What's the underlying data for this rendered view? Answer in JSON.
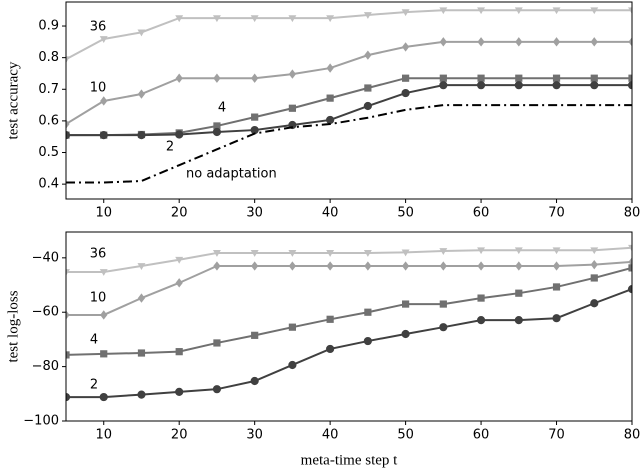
{
  "chart_data": [
    {
      "type": "line",
      "ylabel": "test accuracy",
      "x": [
        5,
        10,
        15,
        20,
        25,
        30,
        35,
        40,
        45,
        50,
        55,
        60,
        65,
        70,
        75,
        80
      ],
      "xlim": [
        5,
        80
      ],
      "xticks": [
        10,
        20,
        30,
        40,
        50,
        60,
        70,
        80
      ],
      "ylim": [
        0.353,
        0.976
      ],
      "yticks": [
        0.4,
        0.5,
        0.6,
        0.7,
        0.8,
        0.9
      ],
      "series": [
        {
          "name": "36",
          "color": "#c0c0c0",
          "marker": "triangle-down",
          "values": [
            0.795,
            0.859,
            0.88,
            0.925,
            0.925,
            0.925,
            0.925,
            0.925,
            0.935,
            0.944,
            0.95,
            0.95,
            0.95,
            0.95,
            0.95,
            0.95
          ]
        },
        {
          "name": "10",
          "color": "#a0a0a0",
          "marker": "diamond",
          "values": [
            0.59,
            0.663,
            0.685,
            0.735,
            0.735,
            0.735,
            0.748,
            0.767,
            0.808,
            0.834,
            0.85,
            0.85,
            0.85,
            0.85,
            0.85,
            0.85
          ]
        },
        {
          "name": "4",
          "color": "#707070",
          "marker": "square",
          "values": [
            0.555,
            0.555,
            0.557,
            0.562,
            0.584,
            0.612,
            0.64,
            0.672,
            0.704,
            0.735,
            0.735,
            0.735,
            0.735,
            0.735,
            0.735,
            0.735
          ]
        },
        {
          "name": "2",
          "color": "#404040",
          "marker": "circle",
          "values": [
            0.555,
            0.555,
            0.555,
            0.557,
            0.565,
            0.571,
            0.587,
            0.603,
            0.647,
            0.688,
            0.713,
            0.713,
            0.713,
            0.713,
            0.713,
            0.713
          ]
        },
        {
          "name": "no adaptation",
          "color": "#000000",
          "linestyle": "dashdot",
          "values": [
            0.405,
            0.405,
            0.41,
            0.46,
            0.51,
            0.56,
            0.58,
            0.59,
            0.61,
            0.635,
            0.65,
            0.65,
            0.65,
            0.65,
            0.65,
            0.65
          ]
        }
      ]
    },
    {
      "type": "line",
      "ylabel": "test log-loss",
      "xlabel": "meta-time step t",
      "x": [
        5,
        10,
        15,
        20,
        25,
        30,
        35,
        40,
        45,
        50,
        55,
        60,
        65,
        70,
        75,
        80
      ],
      "xlim": [
        5,
        80
      ],
      "xticks": [
        10,
        20,
        30,
        40,
        50,
        60,
        70,
        80
      ],
      "ylim": [
        -100,
        -30.5
      ],
      "yticks": [
        -100,
        -80,
        -60,
        -40
      ],
      "series": [
        {
          "name": "36",
          "color": "#c0c0c0",
          "marker": "triangle-down",
          "values": [
            -45.2,
            -45.2,
            -43,
            -40.7,
            -38.2,
            -38.2,
            -38.2,
            -38.2,
            -38.2,
            -38,
            -37.5,
            -37.2,
            -37.2,
            -37.2,
            -37.2,
            -36.3
          ]
        },
        {
          "name": "10",
          "color": "#a0a0a0",
          "marker": "diamond",
          "values": [
            -61,
            -61,
            -54.8,
            -49.2,
            -43,
            -43,
            -43,
            -43,
            -43,
            -43,
            -43,
            -43,
            -43,
            -43,
            -42.5,
            -41.5
          ]
        },
        {
          "name": "4",
          "color": "#707070",
          "marker": "square",
          "values": [
            -75.7,
            -75.3,
            -75,
            -74.5,
            -71.3,
            -68.5,
            -65.5,
            -62.6,
            -60,
            -57,
            -57,
            -54.8,
            -53,
            -50.7,
            -47.4,
            -43.7
          ]
        },
        {
          "name": "2",
          "color": "#404040",
          "marker": "circle",
          "values": [
            -91.2,
            -91.2,
            -90.3,
            -89.3,
            -88.3,
            -85.3,
            -79.4,
            -73.5,
            -70.6,
            -68,
            -65.5,
            -62.9,
            -62.9,
            -62.2,
            -56.7,
            -51.5
          ]
        }
      ]
    }
  ]
}
